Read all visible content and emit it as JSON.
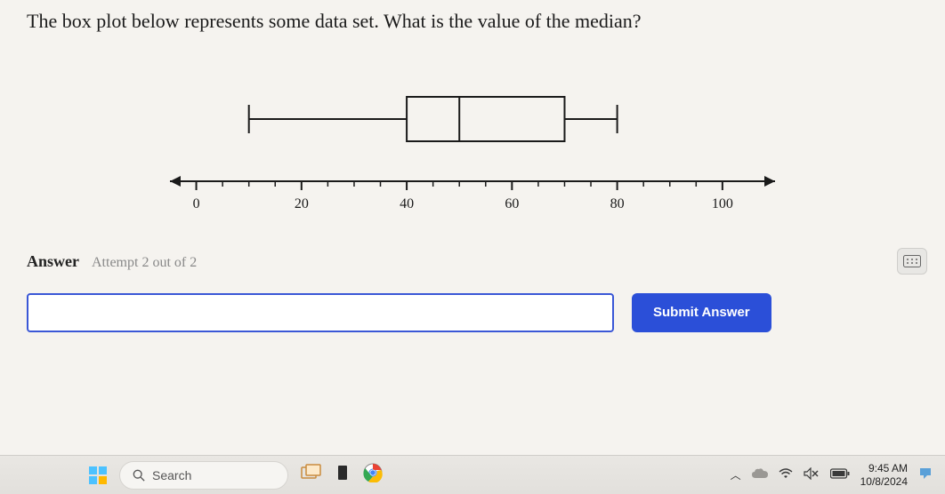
{
  "question": {
    "text": "The box plot below represents some data set. What is the value of the median?"
  },
  "boxplot": {
    "type": "boxplot",
    "axis": {
      "min": -5,
      "max": 110,
      "tick_start": 0,
      "tick_end": 100,
      "tick_step": 5,
      "labels": [
        0,
        20,
        40,
        60,
        80,
        100
      ],
      "line_color": "#1a1a1a",
      "label_fontsize": 16,
      "label_font": "Georgia, serif"
    },
    "stats": {
      "min": 10,
      "q1": 40,
      "median": 50,
      "q3": 70,
      "max": 80
    },
    "box_stroke": "#1a1a1a",
    "box_fill": "none",
    "stroke_width": 2,
    "background": "#f5f3ef"
  },
  "answer": {
    "label": "Answer",
    "attempt_text": "Attempt 2 out of 2",
    "input_value": "",
    "placeholder": "",
    "submit_label": "Submit Answer"
  },
  "taskbar": {
    "search_placeholder": "Search",
    "start_colors": [
      "#4cc2ff",
      "#4cc2ff",
      "#4cc2ff",
      "#ffb900"
    ],
    "tray": {
      "time": "9:45 AM",
      "date": "10/8/2024"
    }
  }
}
